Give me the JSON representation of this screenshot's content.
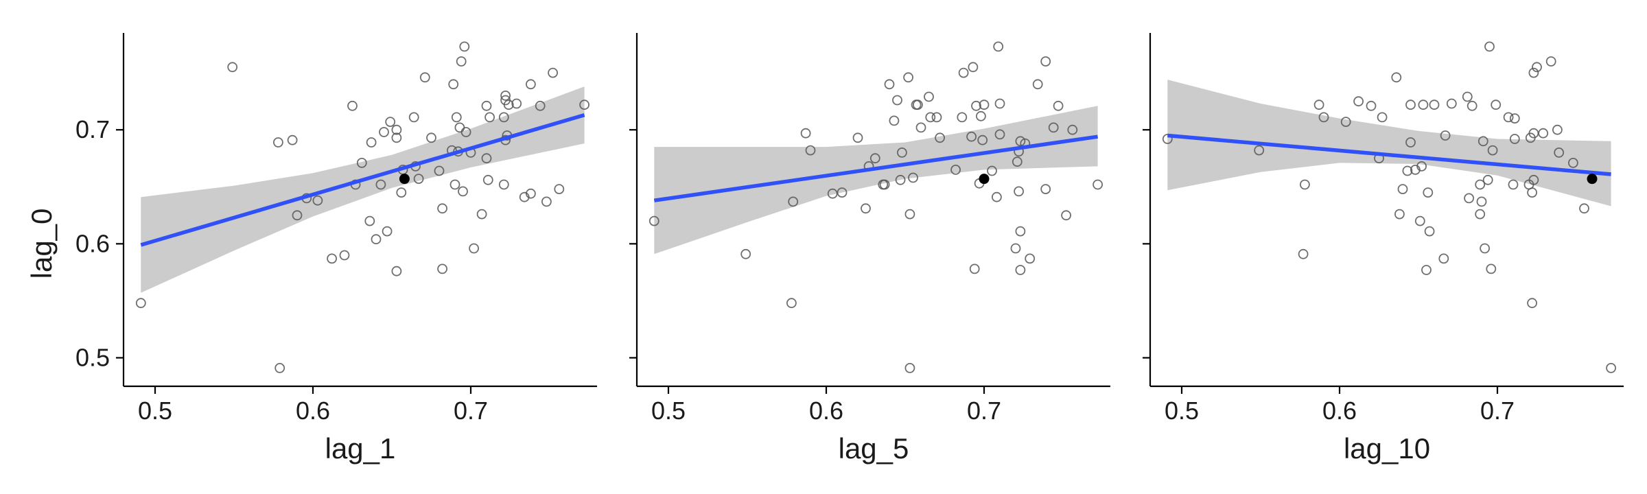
{
  "chart_data": [
    {
      "type": "scatter",
      "title": "",
      "xlabel": "lag_1",
      "ylabel": "lag_0",
      "xlim": [
        0.48,
        0.78
      ],
      "ylim": [
        0.475,
        0.785
      ],
      "xticks": [
        0.5,
        0.6,
        0.7
      ],
      "xtick_labels": [
        "0.5",
        "0.6",
        "0.7"
      ],
      "yticks": [
        0.5,
        0.6,
        0.7
      ],
      "ytick_labels": [
        "0.5",
        "0.6",
        "0.7"
      ],
      "grid": false,
      "fit_line": {
        "x": [
          0.491,
          0.772
        ],
        "y": [
          0.599,
          0.713
        ],
        "color": "#3050f8"
      },
      "confidence_band": {
        "x": [
          0.491,
          0.55,
          0.6,
          0.65,
          0.7,
          0.772
        ],
        "lower": [
          0.557,
          0.594,
          0.624,
          0.649,
          0.667,
          0.688
        ],
        "upper": [
          0.641,
          0.651,
          0.662,
          0.678,
          0.701,
          0.738
        ],
        "color": "#cccccc"
      },
      "highlight_point": {
        "x": 0.658,
        "y": 0.657,
        "color": "#000000"
      },
      "points": [
        {
          "x": 0.491,
          "y": 0.548
        },
        {
          "x": 0.549,
          "y": 0.755
        },
        {
          "x": 0.578,
          "y": 0.689
        },
        {
          "x": 0.579,
          "y": 0.491
        },
        {
          "x": 0.587,
          "y": 0.691
        },
        {
          "x": 0.59,
          "y": 0.625
        },
        {
          "x": 0.596,
          "y": 0.64
        },
        {
          "x": 0.603,
          "y": 0.638
        },
        {
          "x": 0.612,
          "y": 0.587
        },
        {
          "x": 0.62,
          "y": 0.59
        },
        {
          "x": 0.625,
          "y": 0.721
        },
        {
          "x": 0.627,
          "y": 0.652
        },
        {
          "x": 0.631,
          "y": 0.671
        },
        {
          "x": 0.636,
          "y": 0.62
        },
        {
          "x": 0.637,
          "y": 0.689
        },
        {
          "x": 0.64,
          "y": 0.604
        },
        {
          "x": 0.643,
          "y": 0.652
        },
        {
          "x": 0.645,
          "y": 0.698
        },
        {
          "x": 0.647,
          "y": 0.611
        },
        {
          "x": 0.649,
          "y": 0.707
        },
        {
          "x": 0.653,
          "y": 0.693
        },
        {
          "x": 0.653,
          "y": 0.7
        },
        {
          "x": 0.653,
          "y": 0.576
        },
        {
          "x": 0.656,
          "y": 0.645
        },
        {
          "x": 0.657,
          "y": 0.665
        },
        {
          "x": 0.664,
          "y": 0.711
        },
        {
          "x": 0.665,
          "y": 0.668
        },
        {
          "x": 0.667,
          "y": 0.657
        },
        {
          "x": 0.671,
          "y": 0.746
        },
        {
          "x": 0.675,
          "y": 0.693
        },
        {
          "x": 0.68,
          "y": 0.664
        },
        {
          "x": 0.682,
          "y": 0.631
        },
        {
          "x": 0.682,
          "y": 0.578
        },
        {
          "x": 0.688,
          "y": 0.682
        },
        {
          "x": 0.689,
          "y": 0.74
        },
        {
          "x": 0.69,
          "y": 0.652
        },
        {
          "x": 0.691,
          "y": 0.711
        },
        {
          "x": 0.692,
          "y": 0.681
        },
        {
          "x": 0.693,
          "y": 0.702
        },
        {
          "x": 0.694,
          "y": 0.76
        },
        {
          "x": 0.695,
          "y": 0.646
        },
        {
          "x": 0.696,
          "y": 0.773
        },
        {
          "x": 0.697,
          "y": 0.698
        },
        {
          "x": 0.7,
          "y": 0.68
        },
        {
          "x": 0.702,
          "y": 0.596
        },
        {
          "x": 0.707,
          "y": 0.626
        },
        {
          "x": 0.71,
          "y": 0.675
        },
        {
          "x": 0.711,
          "y": 0.656
        },
        {
          "x": 0.71,
          "y": 0.721
        },
        {
          "x": 0.712,
          "y": 0.711
        },
        {
          "x": 0.721,
          "y": 0.652
        },
        {
          "x": 0.721,
          "y": 0.711
        },
        {
          "x": 0.722,
          "y": 0.691
        },
        {
          "x": 0.722,
          "y": 0.726
        },
        {
          "x": 0.723,
          "y": 0.695
        },
        {
          "x": 0.722,
          "y": 0.73
        },
        {
          "x": 0.724,
          "y": 0.722
        },
        {
          "x": 0.729,
          "y": 0.723
        },
        {
          "x": 0.734,
          "y": 0.641
        },
        {
          "x": 0.738,
          "y": 0.644
        },
        {
          "x": 0.738,
          "y": 0.74
        },
        {
          "x": 0.744,
          "y": 0.721
        },
        {
          "x": 0.748,
          "y": 0.637
        },
        {
          "x": 0.752,
          "y": 0.75
        },
        {
          "x": 0.756,
          "y": 0.648
        },
        {
          "x": 0.772,
          "y": 0.722
        }
      ]
    },
    {
      "type": "scatter",
      "title": "",
      "xlabel": "lag_5",
      "ylabel": "",
      "xlim": [
        0.48,
        0.78
      ],
      "ylim": [
        0.475,
        0.785
      ],
      "xticks": [
        0.5,
        0.6,
        0.7
      ],
      "xtick_labels": [
        "0.5",
        "0.6",
        "0.7"
      ],
      "yticks": [
        0.5,
        0.6,
        0.7
      ],
      "ytick_labels": [],
      "grid": false,
      "fit_line": {
        "x": [
          0.491,
          0.772
        ],
        "y": [
          0.638,
          0.694
        ],
        "color": "#3050f8"
      },
      "confidence_band": {
        "x": [
          0.491,
          0.55,
          0.6,
          0.65,
          0.7,
          0.772
        ],
        "lower": [
          0.591,
          0.619,
          0.642,
          0.657,
          0.665,
          0.668
        ],
        "upper": [
          0.685,
          0.685,
          0.685,
          0.689,
          0.701,
          0.721
        ],
        "color": "#cccccc"
      },
      "highlight_point": {
        "x": 0.7,
        "y": 0.657,
        "color": "#000000"
      },
      "points": [
        {
          "x": 0.491,
          "y": 0.62
        },
        {
          "x": 0.549,
          "y": 0.591
        },
        {
          "x": 0.578,
          "y": 0.548
        },
        {
          "x": 0.579,
          "y": 0.637
        },
        {
          "x": 0.587,
          "y": 0.697
        },
        {
          "x": 0.59,
          "y": 0.682
        },
        {
          "x": 0.604,
          "y": 0.644
        },
        {
          "x": 0.61,
          "y": 0.645
        },
        {
          "x": 0.62,
          "y": 0.693
        },
        {
          "x": 0.625,
          "y": 0.631
        },
        {
          "x": 0.627,
          "y": 0.668
        },
        {
          "x": 0.631,
          "y": 0.675
        },
        {
          "x": 0.636,
          "y": 0.652
        },
        {
          "x": 0.637,
          "y": 0.652
        },
        {
          "x": 0.64,
          "y": 0.74
        },
        {
          "x": 0.643,
          "y": 0.708
        },
        {
          "x": 0.645,
          "y": 0.726
        },
        {
          "x": 0.647,
          "y": 0.656
        },
        {
          "x": 0.648,
          "y": 0.68
        },
        {
          "x": 0.652,
          "y": 0.746
        },
        {
          "x": 0.653,
          "y": 0.626
        },
        {
          "x": 0.653,
          "y": 0.491
        },
        {
          "x": 0.655,
          "y": 0.658
        },
        {
          "x": 0.657,
          "y": 0.722
        },
        {
          "x": 0.658,
          "y": 0.722
        },
        {
          "x": 0.66,
          "y": 0.702
        },
        {
          "x": 0.665,
          "y": 0.729
        },
        {
          "x": 0.666,
          "y": 0.711
        },
        {
          "x": 0.67,
          "y": 0.711
        },
        {
          "x": 0.672,
          "y": 0.693
        },
        {
          "x": 0.682,
          "y": 0.665
        },
        {
          "x": 0.686,
          "y": 0.711
        },
        {
          "x": 0.687,
          "y": 0.75
        },
        {
          "x": 0.692,
          "y": 0.694
        },
        {
          "x": 0.693,
          "y": 0.755
        },
        {
          "x": 0.694,
          "y": 0.578
        },
        {
          "x": 0.695,
          "y": 0.721
        },
        {
          "x": 0.697,
          "y": 0.653
        },
        {
          "x": 0.698,
          "y": 0.712
        },
        {
          "x": 0.699,
          "y": 0.691
        },
        {
          "x": 0.7,
          "y": 0.722
        },
        {
          "x": 0.705,
          "y": 0.664
        },
        {
          "x": 0.708,
          "y": 0.641
        },
        {
          "x": 0.709,
          "y": 0.773
        },
        {
          "x": 0.71,
          "y": 0.696
        },
        {
          "x": 0.71,
          "y": 0.723
        },
        {
          "x": 0.72,
          "y": 0.596
        },
        {
          "x": 0.721,
          "y": 0.672
        },
        {
          "x": 0.722,
          "y": 0.646
        },
        {
          "x": 0.722,
          "y": 0.681
        },
        {
          "x": 0.723,
          "y": 0.577
        },
        {
          "x": 0.723,
          "y": 0.611
        },
        {
          "x": 0.723,
          "y": 0.69
        },
        {
          "x": 0.726,
          "y": 0.688
        },
        {
          "x": 0.729,
          "y": 0.587
        },
        {
          "x": 0.734,
          "y": 0.74
        },
        {
          "x": 0.739,
          "y": 0.76
        },
        {
          "x": 0.739,
          "y": 0.648
        },
        {
          "x": 0.744,
          "y": 0.702
        },
        {
          "x": 0.747,
          "y": 0.721
        },
        {
          "x": 0.752,
          "y": 0.625
        },
        {
          "x": 0.756,
          "y": 0.7
        },
        {
          "x": 0.772,
          "y": 0.652
        }
      ]
    },
    {
      "type": "scatter",
      "title": "",
      "xlabel": "lag_10",
      "ylabel": "",
      "xlim": [
        0.48,
        0.78
      ],
      "ylim": [
        0.475,
        0.785
      ],
      "xticks": [
        0.5,
        0.6,
        0.7
      ],
      "xtick_labels": [
        "0.5",
        "0.6",
        "0.7"
      ],
      "yticks": [
        0.5,
        0.6,
        0.7
      ],
      "ytick_labels": [],
      "grid": false,
      "fit_line": {
        "x": [
          0.491,
          0.772
        ],
        "y": [
          0.695,
          0.661
        ],
        "color": "#3050f8"
      },
      "confidence_band": {
        "x": [
          0.491,
          0.55,
          0.6,
          0.65,
          0.7,
          0.772
        ],
        "lower": [
          0.647,
          0.663,
          0.671,
          0.67,
          0.66,
          0.633
        ],
        "upper": [
          0.744,
          0.723,
          0.71,
          0.699,
          0.692,
          0.69
        ],
        "color": "#cccccc"
      },
      "highlight_point": {
        "x": 0.76,
        "y": 0.657,
        "color": "#000000"
      },
      "points": [
        {
          "x": 0.491,
          "y": 0.692
        },
        {
          "x": 0.549,
          "y": 0.682
        },
        {
          "x": 0.577,
          "y": 0.591
        },
        {
          "x": 0.578,
          "y": 0.652
        },
        {
          "x": 0.587,
          "y": 0.722
        },
        {
          "x": 0.59,
          "y": 0.711
        },
        {
          "x": 0.604,
          "y": 0.707
        },
        {
          "x": 0.612,
          "y": 0.725
        },
        {
          "x": 0.62,
          "y": 0.721
        },
        {
          "x": 0.625,
          "y": 0.675
        },
        {
          "x": 0.627,
          "y": 0.711
        },
        {
          "x": 0.636,
          "y": 0.746
        },
        {
          "x": 0.638,
          "y": 0.626
        },
        {
          "x": 0.64,
          "y": 0.648
        },
        {
          "x": 0.643,
          "y": 0.664
        },
        {
          "x": 0.645,
          "y": 0.722
        },
        {
          "x": 0.645,
          "y": 0.689
        },
        {
          "x": 0.648,
          "y": 0.665
        },
        {
          "x": 0.651,
          "y": 0.62
        },
        {
          "x": 0.652,
          "y": 0.668
        },
        {
          "x": 0.653,
          "y": 0.722
        },
        {
          "x": 0.655,
          "y": 0.577
        },
        {
          "x": 0.656,
          "y": 0.645
        },
        {
          "x": 0.657,
          "y": 0.611
        },
        {
          "x": 0.66,
          "y": 0.722
        },
        {
          "x": 0.666,
          "y": 0.587
        },
        {
          "x": 0.667,
          "y": 0.695
        },
        {
          "x": 0.671,
          "y": 0.723
        },
        {
          "x": 0.681,
          "y": 0.729
        },
        {
          "x": 0.682,
          "y": 0.64
        },
        {
          "x": 0.684,
          "y": 0.721
        },
        {
          "x": 0.689,
          "y": 0.652
        },
        {
          "x": 0.689,
          "y": 0.626
        },
        {
          "x": 0.69,
          "y": 0.637
        },
        {
          "x": 0.691,
          "y": 0.69
        },
        {
          "x": 0.692,
          "y": 0.596
        },
        {
          "x": 0.694,
          "y": 0.656
        },
        {
          "x": 0.695,
          "y": 0.773
        },
        {
          "x": 0.696,
          "y": 0.578
        },
        {
          "x": 0.697,
          "y": 0.682
        },
        {
          "x": 0.699,
          "y": 0.722
        },
        {
          "x": 0.707,
          "y": 0.711
        },
        {
          "x": 0.71,
          "y": 0.652
        },
        {
          "x": 0.711,
          "y": 0.692
        },
        {
          "x": 0.711,
          "y": 0.71
        },
        {
          "x": 0.72,
          "y": 0.652
        },
        {
          "x": 0.721,
          "y": 0.693
        },
        {
          "x": 0.722,
          "y": 0.645
        },
        {
          "x": 0.722,
          "y": 0.548
        },
        {
          "x": 0.723,
          "y": 0.656
        },
        {
          "x": 0.723,
          "y": 0.697
        },
        {
          "x": 0.723,
          "y": 0.75
        },
        {
          "x": 0.725,
          "y": 0.755
        },
        {
          "x": 0.729,
          "y": 0.697
        },
        {
          "x": 0.734,
          "y": 0.76
        },
        {
          "x": 0.738,
          "y": 0.7
        },
        {
          "x": 0.739,
          "y": 0.68
        },
        {
          "x": 0.748,
          "y": 0.671
        },
        {
          "x": 0.755,
          "y": 0.631
        },
        {
          "x": 0.772,
          "y": 0.491
        }
      ]
    }
  ]
}
